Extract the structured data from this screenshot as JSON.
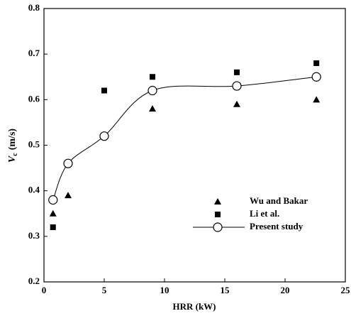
{
  "chart_data": {
    "type": "scatter",
    "xlabel": "HRR (kW)",
    "ylabel": [
      "V",
      "c",
      "(m/s)"
    ],
    "xlim": [
      0,
      25
    ],
    "xticks": [
      0,
      5,
      10,
      15,
      20,
      25
    ],
    "ylim": [
      0.2,
      0.8
    ],
    "yticks": [
      0.2,
      0.3,
      0.4,
      0.5,
      0.6,
      0.7,
      0.8
    ],
    "legend": "lower right",
    "series": [
      {
        "name": "Wu and Bakar",
        "color": "#000000",
        "marker": "triangle",
        "line": false,
        "x": [
          0.75,
          2,
          5,
          9,
          16,
          22.6
        ],
        "values": [
          0.35,
          0.39,
          0.52,
          0.58,
          0.59,
          0.6
        ]
      },
      {
        "name": "Li et al.",
        "color": "#000000",
        "marker": "square",
        "line": false,
        "x": [
          0.75,
          2,
          5,
          9,
          16,
          22.6
        ],
        "values": [
          0.32,
          0.46,
          0.62,
          0.65,
          0.66,
          0.68
        ]
      },
      {
        "name": "Present study",
        "color": "#000000",
        "marker": "open-circle",
        "line": true,
        "x": [
          0.75,
          2,
          5,
          9,
          16,
          22.6
        ],
        "values": [
          0.38,
          0.46,
          0.52,
          0.62,
          0.63,
          0.65
        ]
      }
    ]
  }
}
